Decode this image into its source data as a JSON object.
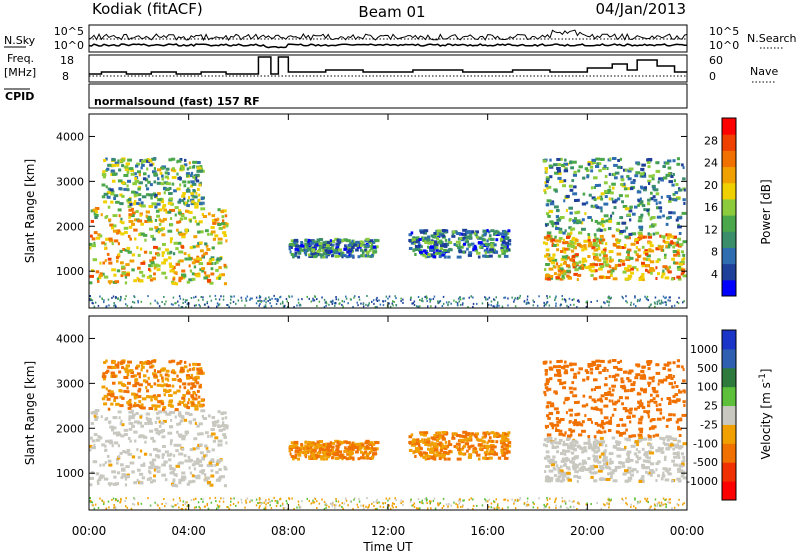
{
  "header": {
    "station": "Kodiak (fitACF)",
    "beam": "Beam 01",
    "date": "04/Jan/2013"
  },
  "noise_panel": {
    "left_label": "N.Sky",
    "right_label": "N.Search",
    "left_ticks": [
      "10^5",
      "10^0"
    ],
    "right_ticks": [
      "10^5",
      "10^0"
    ]
  },
  "freq_panel": {
    "left_label_1": "Freq.",
    "left_label_2": "[MHz]",
    "left_ticks": [
      "18",
      "8"
    ],
    "right_label": "Nave",
    "right_ticks": [
      "60",
      "0"
    ]
  },
  "cpid_panel": {
    "label": "CPID",
    "value": "normalsound (fast) 157 RF"
  },
  "colors": {
    "power_scale": [
      "#0000ff",
      "#1e3f9a",
      "#2e6db0",
      "#3a8f6a",
      "#4aa84a",
      "#8ccc3c",
      "#f0d000",
      "#f0a000",
      "#f07000",
      "#f04000",
      "#ff0000"
    ],
    "velocity_scale": [
      "#1a35c8",
      "#2e5fb0",
      "#2d7a3c",
      "#5cc03a",
      "#c8c8c0",
      "#f0a000",
      "#f07000",
      "#f03000",
      "#ff0000"
    ],
    "ground_scatter": "#c8c8c0"
  },
  "chart_data": [
    {
      "type": "heatmap",
      "title": "Power",
      "ylabel": "Slant Range [km]",
      "xlabel": "Time UT",
      "xlim": [
        "00:00",
        "24:00"
      ],
      "ylim": [
        180,
        4500
      ],
      "yticks": [
        "1000",
        "2000",
        "3000",
        "4000"
      ],
      "colorbar": {
        "label": "Power [dB]",
        "ticks": [
          "4",
          "8",
          "12",
          "16",
          "20",
          "24",
          "28"
        ],
        "range": [
          0,
          30
        ]
      },
      "echo_regions": [
        {
          "t_start": 0.0,
          "t_end": 5.5,
          "range_km": [
            700,
            2400
          ],
          "power_db": 18
        },
        {
          "t_start": 0.5,
          "t_end": 4.5,
          "range_km": [
            2400,
            3500
          ],
          "power_db": 12
        },
        {
          "t_start": 8.0,
          "t_end": 11.5,
          "range_km": [
            1300,
            1700
          ],
          "power_db": 8
        },
        {
          "t_start": 12.8,
          "t_end": 16.8,
          "range_km": [
            1300,
            1900
          ],
          "power_db": 8
        },
        {
          "t_start": 18.2,
          "t_end": 24.0,
          "range_km": [
            800,
            1800
          ],
          "power_db": 20
        },
        {
          "t_start": 18.2,
          "t_end": 24.0,
          "range_km": [
            1800,
            3500
          ],
          "power_db": 10
        }
      ]
    },
    {
      "type": "heatmap",
      "title": "Velocity",
      "ylabel": "Slant Range [km]",
      "xlabel": "Time UT",
      "xlim": [
        "00:00",
        "24:00"
      ],
      "ylim": [
        180,
        4500
      ],
      "yticks": [
        "1000",
        "2000",
        "3000",
        "4000"
      ],
      "xticks": [
        "00:00",
        "04:00",
        "08:00",
        "12:00",
        "16:00",
        "20:00",
        "00:00"
      ],
      "colorbar": {
        "label": "Velocity [m s-1]",
        "ticks": [
          "1000",
          "500",
          "100",
          "25",
          "-25",
          "-100",
          "-500",
          "-1000"
        ]
      },
      "echo_regions": [
        {
          "t_start": 0.0,
          "t_end": 5.5,
          "range_km": [
            700,
            2400
          ],
          "velocity": "ground scatter"
        },
        {
          "t_start": 0.5,
          "t_end": 4.0,
          "range_km": [
            2400,
            3500
          ],
          "velocity": -100
        },
        {
          "t_start": 8.0,
          "t_end": 11.5,
          "range_km": [
            1300,
            1700
          ],
          "velocity": -100
        },
        {
          "t_start": 12.8,
          "t_end": 16.8,
          "range_km": [
            1300,
            1900
          ],
          "velocity": -100
        },
        {
          "t_start": 18.2,
          "t_end": 24.0,
          "range_km": [
            800,
            1800
          ],
          "velocity": "ground scatter"
        },
        {
          "t_start": 18.2,
          "t_end": 24.0,
          "range_km": [
            2000,
            3500
          ],
          "velocity": -300
        }
      ]
    }
  ]
}
